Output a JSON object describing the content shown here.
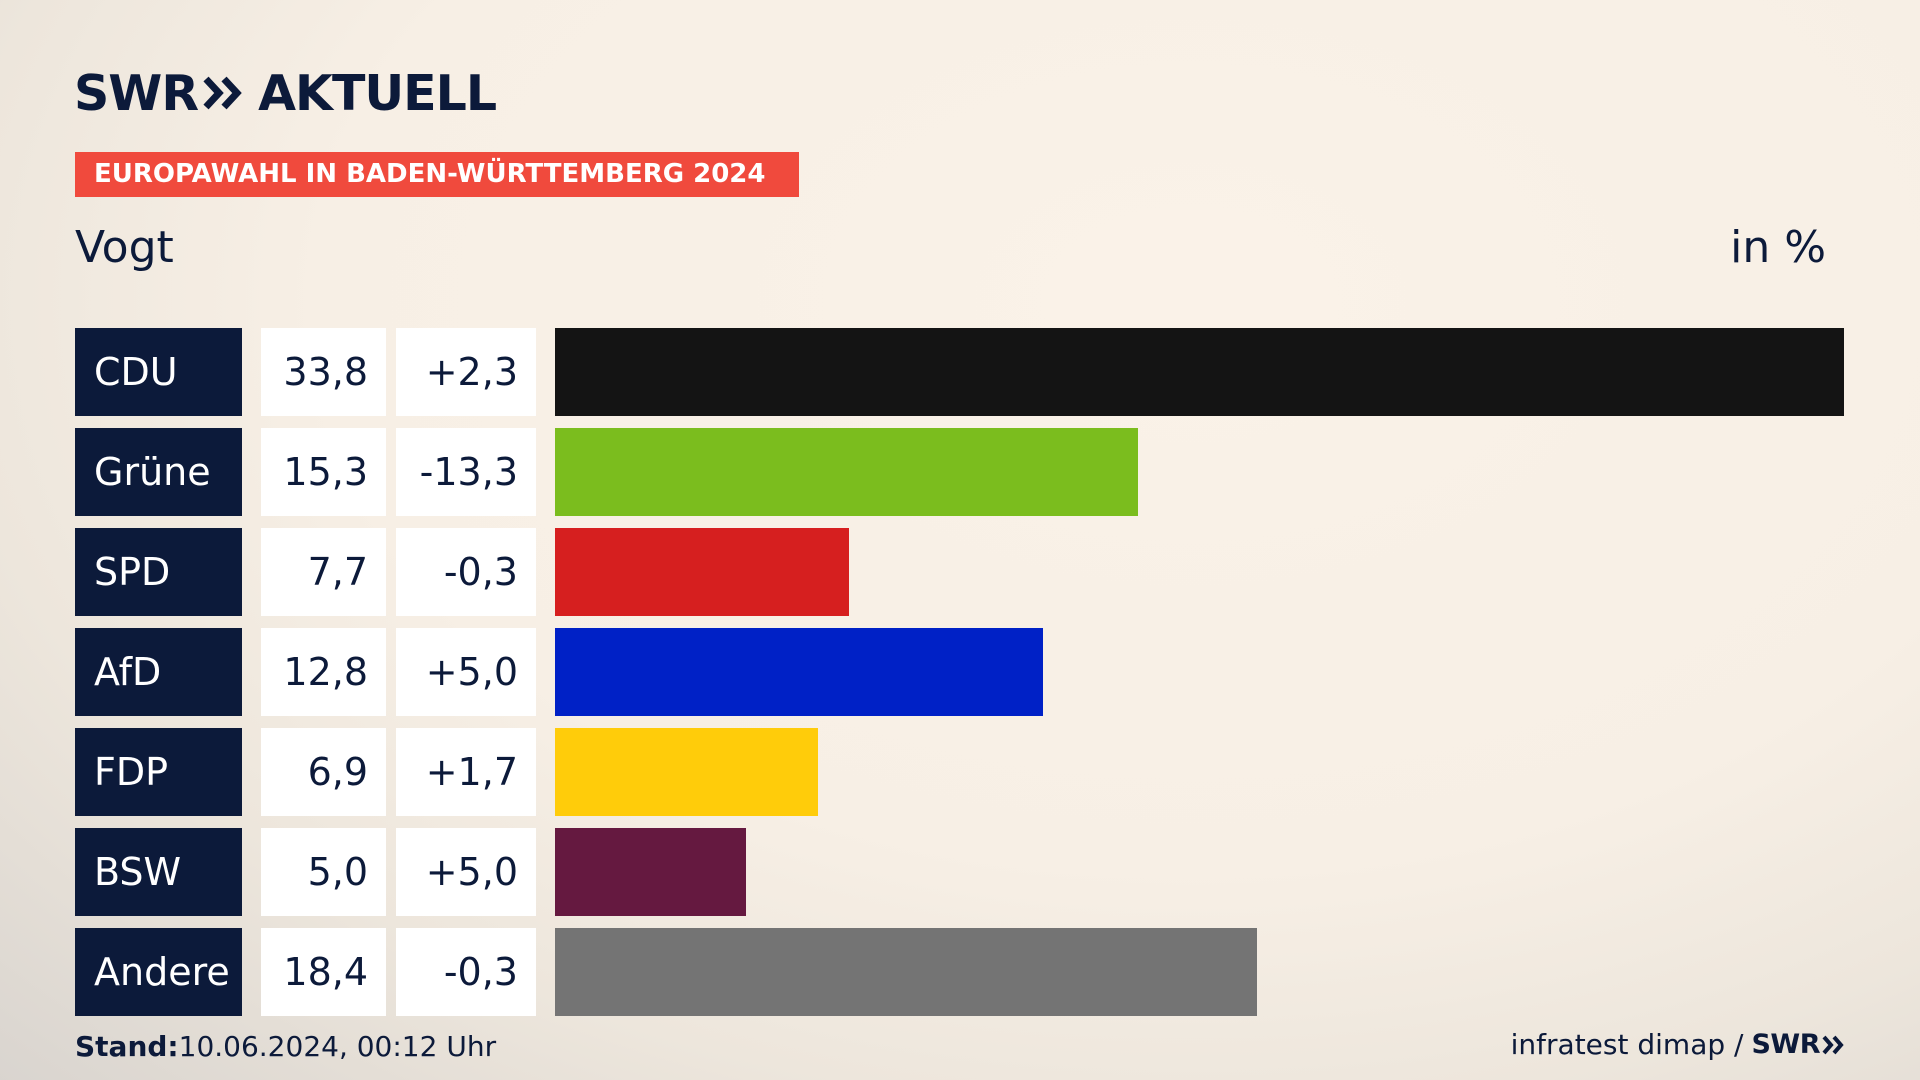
{
  "brand": {
    "logo_text": "SWR",
    "logo_suffix": "AKTUELL",
    "color_dark": "#0c1a3a",
    "color_accent": "#f04a3d"
  },
  "header": {
    "banner": "EUROPAWAHL IN BADEN-WÜRTTEMBERG 2024",
    "subtitle": "Vogt",
    "unit": "in %"
  },
  "chart_data": {
    "type": "bar",
    "orientation": "horizontal",
    "title": "EUROPAWAHL IN BADEN-WÜRTTEMBERG 2024",
    "subtitle": "Vogt",
    "unit": "in %",
    "categories": [
      "CDU",
      "Grüne",
      "SPD",
      "AfD",
      "FDP",
      "BSW",
      "Andere"
    ],
    "values": [
      33.8,
      15.3,
      7.7,
      12.8,
      6.9,
      5.0,
      18.4
    ],
    "value_labels": [
      "33,8",
      "15,3",
      "7,7",
      "12,8",
      "6,9",
      "5,0",
      "18,4"
    ],
    "diff_labels": [
      "+2,3",
      "-13,3",
      "-0,3",
      "+5,0",
      "+1,7",
      "+5,0",
      "-0,3"
    ],
    "colors": [
      "#141414",
      "#7bbd1e",
      "#d61f1f",
      "#0021c6",
      "#ffcc0a",
      "#651940",
      "#747474"
    ],
    "xlim": [
      0,
      33.8
    ],
    "grid": false,
    "legend": "none"
  },
  "footer": {
    "stand_label": "Stand:",
    "stand_value": "10.06.2024, 00:12 Uhr",
    "source": "infratest dimap /",
    "source_logo": "SWR"
  }
}
